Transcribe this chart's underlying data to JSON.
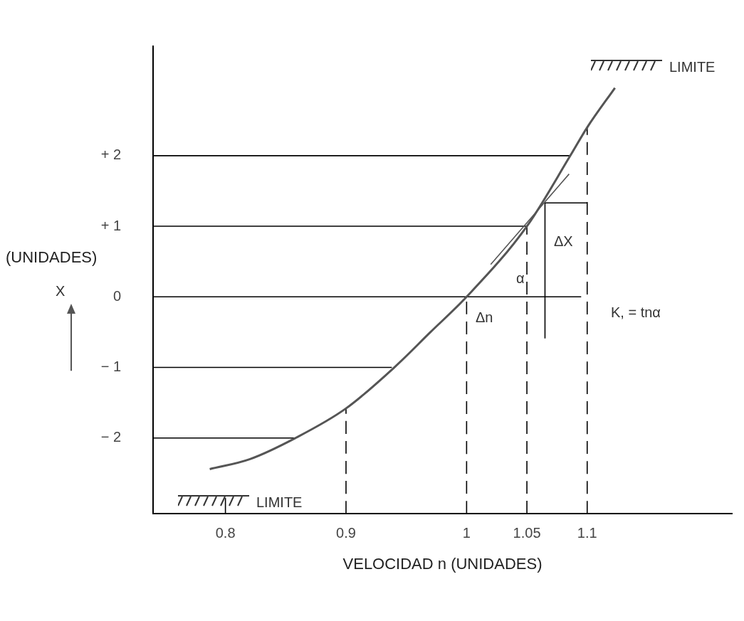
{
  "chart_data": {
    "type": "line",
    "xlabel": "VELOCIDAD n (UNIDADES)",
    "ylabel": "(UNIDADES)",
    "xlim": [
      0.74,
      1.22
    ],
    "ylim": [
      -3.07,
      3.55
    ],
    "xticks": [
      0.8,
      0.9,
      {
        "value": 1,
        "label": "1"
      },
      1.05,
      1.1
    ],
    "yticks": [
      {
        "value": -2,
        "label": "− 2"
      },
      {
        "value": -1,
        "label": "− 1"
      },
      {
        "value": 0,
        "label": "0"
      },
      {
        "value": 1,
        "label": "+ 1"
      },
      {
        "value": 2,
        "label": "+ 2"
      }
    ],
    "grid": false,
    "legend": false,
    "marker": "none",
    "series": [
      {
        "color": "#555555",
        "x": [
          0.787,
          0.82,
          0.858,
          0.9,
          0.94,
          0.97,
          1.0,
          1.05,
          1.086,
          1.1,
          1.123
        ],
        "values": [
          -2.44,
          -2.3,
          -2.0,
          -1.58,
          -1.0,
          -0.5,
          0,
          1.0,
          2.0,
          2.4,
          2.96
        ]
      },
      {
        "color": "#555555",
        "x": [
          1.02,
          1.085
        ],
        "values": [
          0.46,
          1.74
        ]
      },
      {
        "color": "#000000",
        "x": [
          0.74,
          1.086
        ],
        "values": [
          2,
          2
        ]
      },
      {
        "color": "#000000",
        "x": [
          0.74,
          1.05
        ],
        "values": [
          1,
          1
        ]
      },
      {
        "color": "#000000",
        "x": [
          0.74,
          1.095
        ],
        "values": [
          0,
          0
        ]
      },
      {
        "color": "#000000",
        "x": [
          0.74,
          0.938
        ],
        "values": [
          -1,
          -1
        ]
      },
      {
        "color": "#000000",
        "x": [
          0.74,
          0.858
        ],
        "values": [
          -2,
          -2
        ]
      },
      {
        "color": "#000000",
        "x": [
          0.8,
          0.8
        ],
        "values": [
          -3.07,
          -2.85
        ]
      },
      {
        "color": "#000000",
        "line_style": "dashed",
        "x": [
          0.9,
          0.9
        ],
        "values": [
          -3.07,
          -1.58
        ]
      },
      {
        "color": "#000000",
        "line_style": "dashed",
        "x": [
          1.0,
          1.0
        ],
        "values": [
          -3.07,
          0
        ]
      },
      {
        "color": "#000000",
        "line_style": "dashed",
        "x": [
          1.05,
          1.05
        ],
        "values": [
          -3.07,
          1.0
        ]
      },
      {
        "color": "#000000",
        "line_style": "dashed",
        "x": [
          1.1,
          1.1
        ],
        "values": [
          -3.07,
          2.4
        ]
      },
      {
        "color": "#000000",
        "x": [
          1.065,
          1.065,
          1.1
        ],
        "values": [
          -0.59,
          1.33,
          1.33
        ]
      }
    ],
    "annotations": [
      "LIMITE",
      "LIMITE",
      "Δn",
      "ΔX",
      "α",
      "K, = tnα",
      "X"
    ]
  }
}
